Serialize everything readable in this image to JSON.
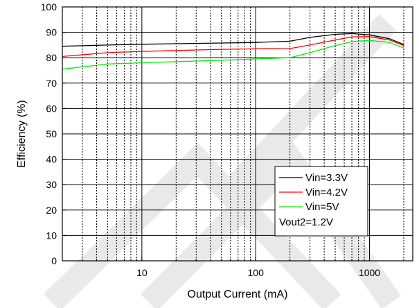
{
  "chart_data": {
    "type": "line",
    "xlabel": "Output Current (mA)",
    "ylabel": "Efficiency (%)",
    "xscale": "log",
    "xlim": [
      2,
      2400
    ],
    "ylim": [
      0,
      100
    ],
    "x_tick_labels": [
      {
        "value": 10,
        "label": "10"
      },
      {
        "value": 100,
        "label": "100"
      },
      {
        "value": 1000,
        "label": "1000"
      }
    ],
    "y_ticks": [
      0,
      10,
      20,
      30,
      40,
      50,
      60,
      70,
      80,
      90,
      100
    ],
    "grid": true,
    "legend_position": "bottom-right",
    "annotation": "Vout2=1.2V",
    "series": [
      {
        "name": "Vin=3.3V",
        "color": "#000000",
        "points": [
          [
            2,
            84.5
          ],
          [
            5,
            85.0
          ],
          [
            10,
            85.3
          ],
          [
            50,
            85.8
          ],
          [
            100,
            86.0
          ],
          [
            200,
            86.5
          ],
          [
            300,
            88.0
          ],
          [
            500,
            89.2
          ],
          [
            700,
            89.5
          ],
          [
            1000,
            89.0
          ],
          [
            1500,
            87.5
          ],
          [
            2000,
            85.2
          ]
        ]
      },
      {
        "name": "Vin=4.2V",
        "color": "#ff0000",
        "points": [
          [
            2,
            80.5
          ],
          [
            5,
            82.0
          ],
          [
            10,
            82.5
          ],
          [
            50,
            83.3
          ],
          [
            100,
            83.5
          ],
          [
            200,
            83.6
          ],
          [
            300,
            85.0
          ],
          [
            500,
            87.0
          ],
          [
            700,
            88.2
          ],
          [
            1000,
            88.3
          ],
          [
            1500,
            87.0
          ],
          [
            2000,
            84.8
          ]
        ]
      },
      {
        "name": "Vin=5V",
        "color": "#00ee00",
        "points": [
          [
            2,
            75.5
          ],
          [
            5,
            77.5
          ],
          [
            10,
            78.0
          ],
          [
            50,
            79.0
          ],
          [
            100,
            79.5
          ],
          [
            200,
            80.0
          ],
          [
            300,
            82.0
          ],
          [
            500,
            84.8
          ],
          [
            700,
            86.3
          ],
          [
            1000,
            86.8
          ],
          [
            1500,
            86.0
          ],
          [
            2000,
            83.8
          ]
        ]
      }
    ]
  }
}
